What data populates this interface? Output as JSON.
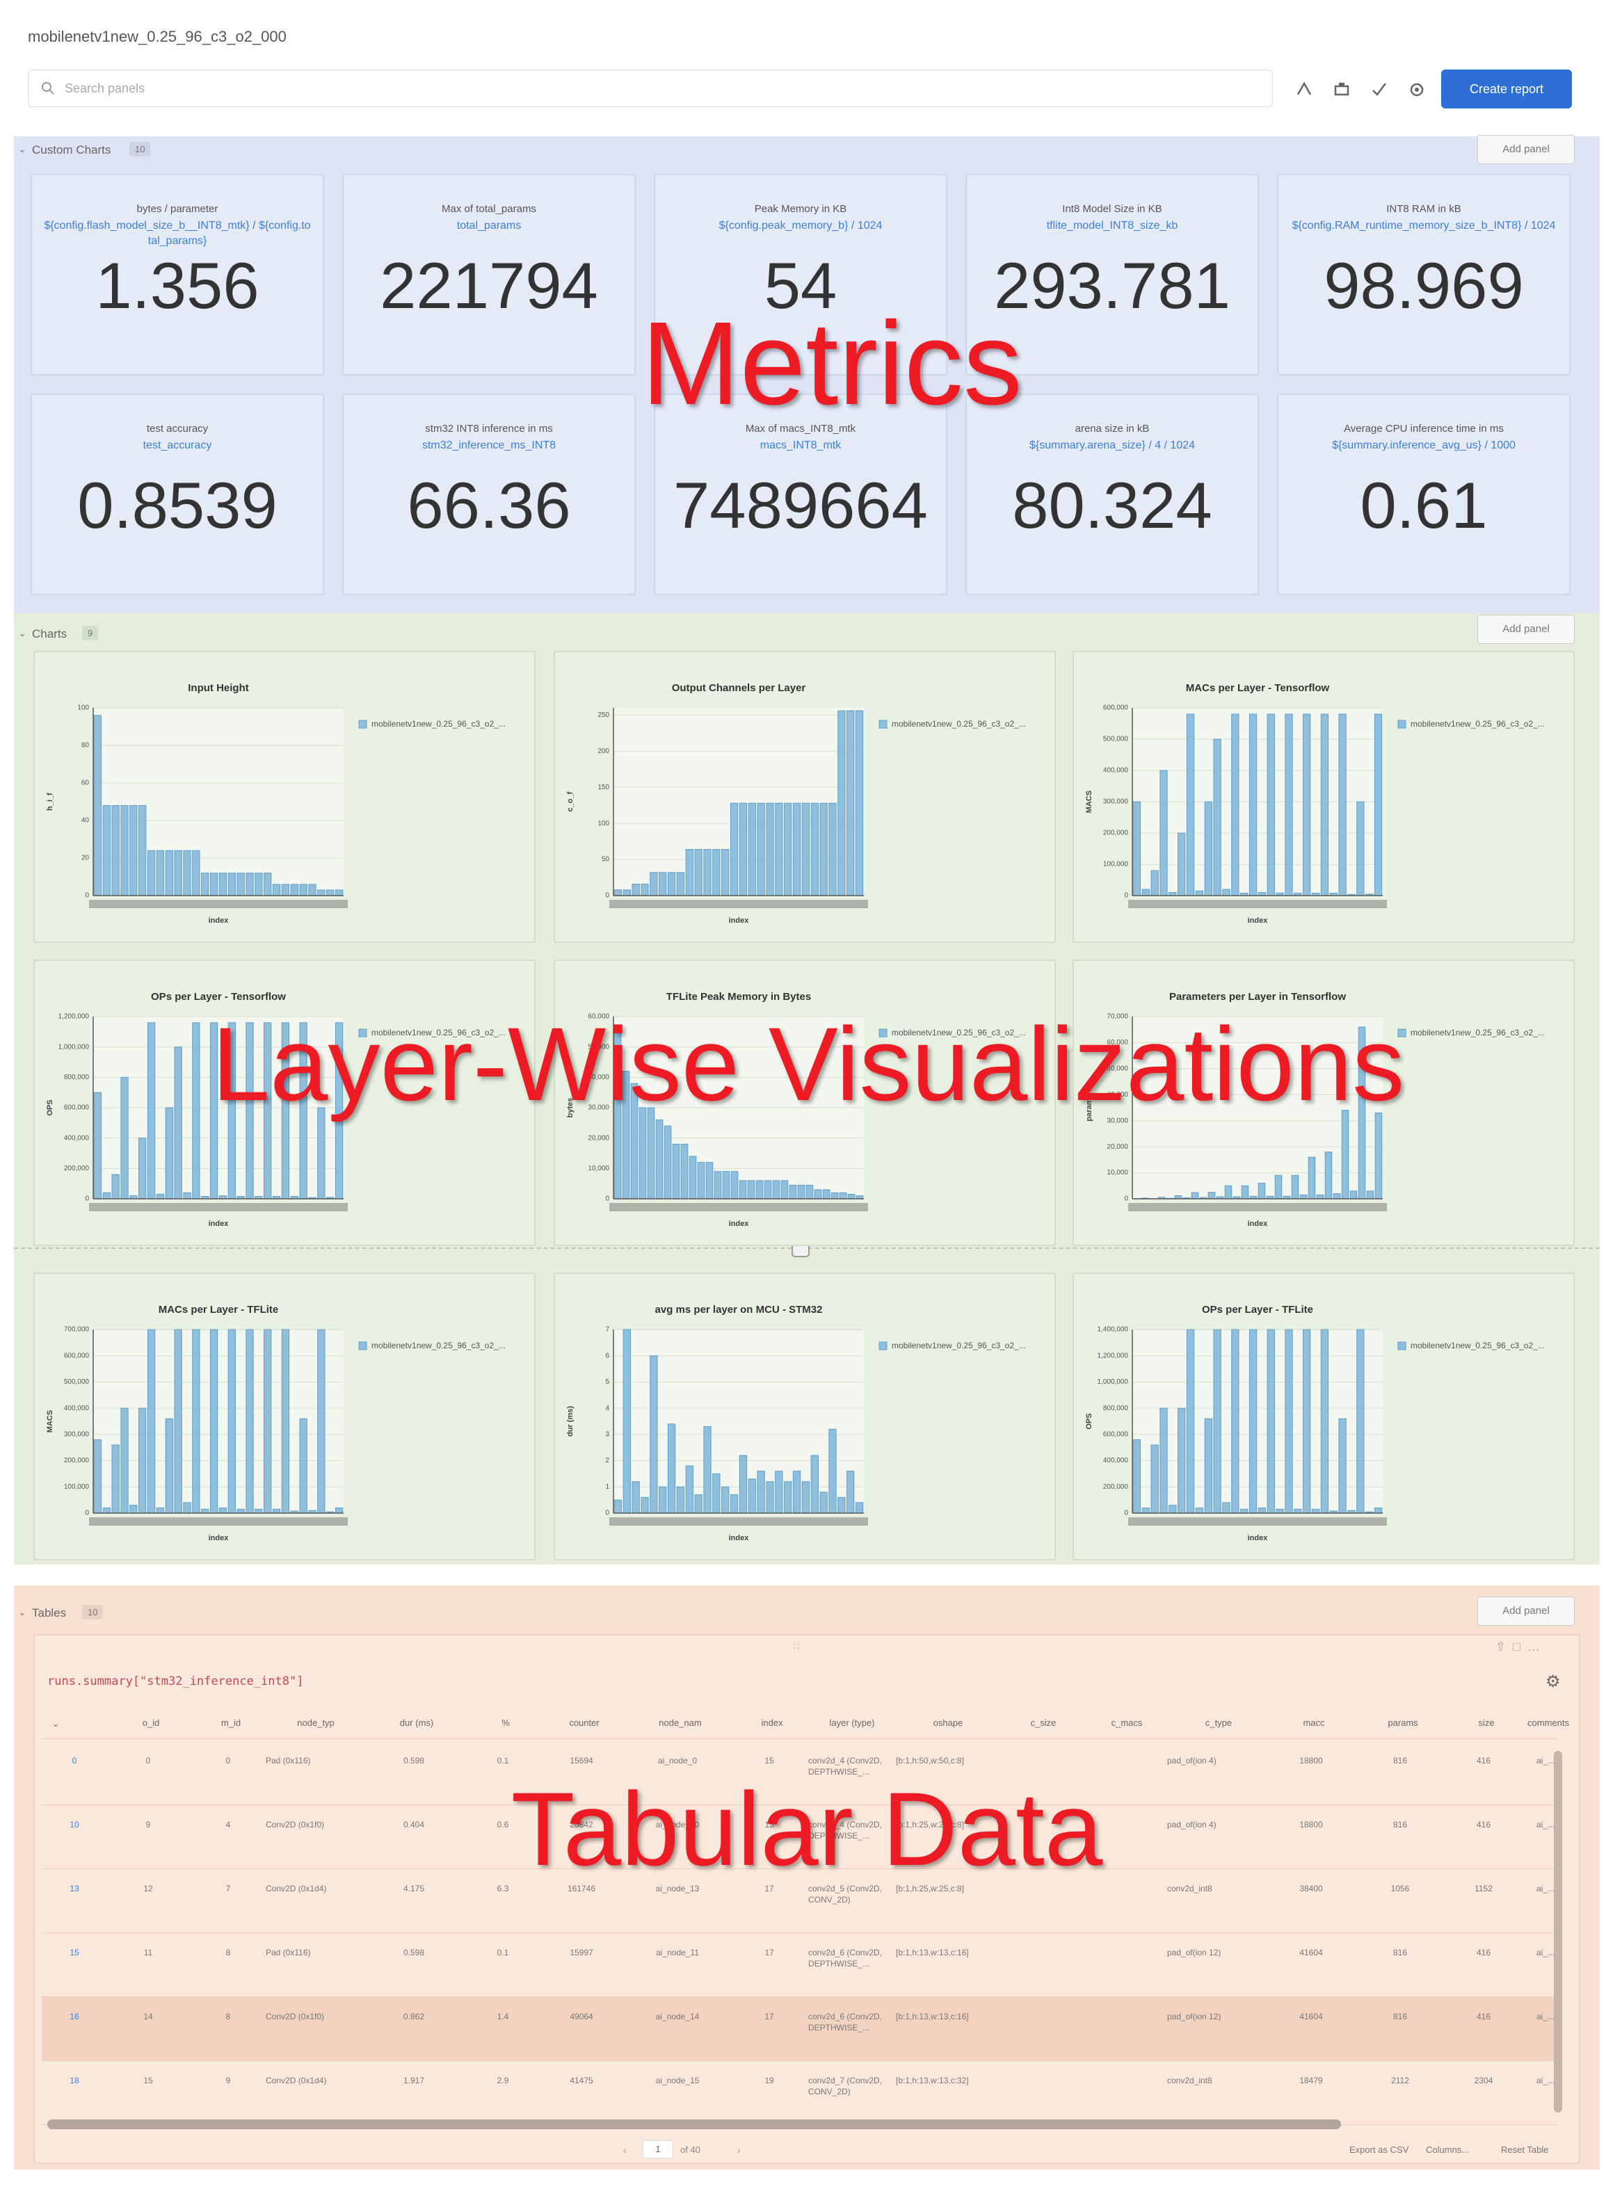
{
  "header": {
    "title": "mobilenetv1new_0.25_96_c3_o2_000",
    "search_placeholder": "Search panels",
    "create_report": "Create report"
  },
  "metrics_section": {
    "name": "Custom Charts",
    "count": 10,
    "add_panel": "Add panel",
    "cards": [
      {
        "title": "bytes / parameter",
        "expression": "${config.flash_model_size_b__INT8_mtk} / ${config.total_params}",
        "value": 1.356
      },
      {
        "title": "Max of total_params",
        "expression": "total_params",
        "value": 221794
      },
      {
        "title": "Peak Memory in KB",
        "expression": "${config.peak_memory_b} / 1024",
        "value": 54
      },
      {
        "title": "Int8 Model Size in KB",
        "expression": "tflite_model_INT8_size_kb",
        "value": 293.781
      },
      {
        "title": "INT8 RAM in kB",
        "expression": "${config.RAM_runtime_memory_size_b_INT8} / 1024",
        "value": 98.969
      },
      {
        "title": "test accuracy",
        "expression": "test_accuracy",
        "value": 0.8539
      },
      {
        "title": "stm32 INT8 inference in ms",
        "expression": "stm32_inference_ms_INT8",
        "value": 66.36
      },
      {
        "title": "Max of macs_INT8_mtk",
        "expression": "macs_INT8_mtk",
        "value": 7489664
      },
      {
        "title": "arena size in kB",
        "expression": "${summary.arena_size} / 4 / 1024",
        "value": 80.324
      },
      {
        "title": "Average CPU inference time in ms",
        "expression": "${summary.inference_avg_us} / 1000",
        "value": 0.61
      }
    ]
  },
  "charts_section": {
    "name": "Charts",
    "count": 9,
    "add_panel": "Add panel",
    "charts": [
      {
        "type": "bar",
        "title": "Input Height",
        "legend": "mobilenetv1new_0.25_96_c3_o2_...",
        "y_label": "h_i_f",
        "x_label": "index",
        "color": "#8fbfdc",
        "ylim": [
          0,
          100
        ],
        "yticks": [
          0,
          20,
          40,
          60,
          80,
          100
        ],
        "values": [
          96,
          48,
          48,
          48,
          48,
          48,
          24,
          24,
          24,
          24,
          24,
          24,
          12,
          12,
          12,
          12,
          12,
          12,
          12,
          12,
          6,
          6,
          6,
          6,
          6,
          3,
          3,
          3
        ]
      },
      {
        "type": "bar",
        "title": "Output Channels per Layer",
        "legend": "mobilenetv1new_0.25_96_c3_o2_...",
        "y_label": "c_o_f",
        "x_label": "index",
        "color": "#8fbfdc",
        "ylim": [
          0,
          260
        ],
        "yticks": [
          0,
          50,
          100,
          150,
          200,
          250
        ],
        "values": [
          8,
          8,
          16,
          16,
          32,
          32,
          32,
          32,
          64,
          64,
          64,
          64,
          64,
          128,
          128,
          128,
          128,
          128,
          128,
          128,
          128,
          128,
          128,
          128,
          128,
          256,
          256,
          256
        ]
      },
      {
        "type": "bar",
        "title": "MACs per Layer - Tensorflow",
        "legend": "mobilenetv1new_0.25_96_c3_o2_...",
        "y_label": "MACS",
        "x_label": "index",
        "color": "#8fbfdc",
        "ylim": [
          0,
          600000
        ],
        "yticks": [
          0,
          {
            "value": 100000,
            "label": "100,000"
          },
          {
            "value": 200000,
            "label": "200,000"
          },
          {
            "value": 300000,
            "label": "300,000"
          },
          {
            "value": 400000,
            "label": "400,000"
          },
          {
            "value": 500000,
            "label": "500,000"
          },
          {
            "value": 600000,
            "label": "600,000"
          }
        ],
        "values": [
          300000,
          20000,
          80000,
          400000,
          10000,
          200000,
          580000,
          15000,
          300000,
          500000,
          20000,
          580000,
          8000,
          580000,
          10000,
          580000,
          8000,
          580000,
          8000,
          580000,
          8000,
          580000,
          8000,
          580000,
          4000,
          300000,
          5000,
          580000
        ]
      },
      {
        "type": "bar",
        "title": "OPs per Layer - Tensorflow",
        "legend": "mobilenetv1new_0.25_96_c3_o2_...",
        "y_label": "OPS",
        "x_label": "index",
        "color": "#8fbfdc",
        "ylim": [
          0,
          1200000
        ],
        "yticks": [
          0,
          {
            "value": 200000,
            "label": "200,000"
          },
          {
            "value": 400000,
            "label": "400,000"
          },
          {
            "value": 600000,
            "label": "600,000"
          },
          {
            "value": 800000,
            "label": "800,000"
          },
          {
            "value": 1000000,
            "label": "1,000,000"
          },
          {
            "value": 1200000,
            "label": "1,200,000"
          }
        ],
        "values": [
          700000,
          40000,
          160000,
          800000,
          20000,
          400000,
          1160000,
          30000,
          600000,
          1000000,
          40000,
          1160000,
          16000,
          1160000,
          20000,
          1160000,
          16000,
          1160000,
          16000,
          1160000,
          16000,
          1160000,
          16000,
          1160000,
          8000,
          600000,
          10000,
          1160000
        ]
      },
      {
        "type": "bar",
        "title": "TFLite Peak Memory in Bytes",
        "legend": "mobilenetv1new_0.25_96_c3_o2_...",
        "y_label": "bytes",
        "x_label": "index",
        "color": "#8fbfdc",
        "ylim": [
          0,
          60000
        ],
        "yticks": [
          0,
          {
            "value": 10000,
            "label": "10,000"
          },
          {
            "value": 20000,
            "label": "20,000"
          },
          {
            "value": 30000,
            "label": "30,000"
          },
          {
            "value": 40000,
            "label": "40,000"
          },
          {
            "value": 50000,
            "label": "50,000"
          },
          {
            "value": 60000,
            "label": "60,000"
          }
        ],
        "values": [
          56000,
          42000,
          38000,
          30000,
          30000,
          26000,
          24000,
          18000,
          18000,
          14000,
          12000,
          12000,
          9000,
          9000,
          9000,
          6000,
          6000,
          6000,
          6000,
          6000,
          6000,
          4500,
          4500,
          4500,
          3000,
          3000,
          2000,
          2000,
          1500,
          1000
        ]
      },
      {
        "type": "bar",
        "title": "Parameters per Layer in Tensorflow",
        "legend": "mobilenetv1new_0.25_96_c3_o2_...",
        "y_label": "params",
        "x_label": "index",
        "color": "#8fbfdc",
        "ylim": [
          0,
          70000
        ],
        "yticks": [
          0,
          {
            "value": 10000,
            "label": "10,000"
          },
          {
            "value": 20000,
            "label": "20,000"
          },
          {
            "value": 30000,
            "label": "30,000"
          },
          {
            "value": 40000,
            "label": "40,000"
          },
          {
            "value": 50000,
            "label": "50,000"
          },
          {
            "value": 60000,
            "label": "60,000"
          },
          {
            "value": 70000,
            "label": "70,000"
          }
        ],
        "values": [
          100,
          300,
          100,
          600,
          200,
          1200,
          400,
          2400,
          500,
          2500,
          800,
          5000,
          800,
          5000,
          1000,
          6000,
          1000,
          9000,
          1000,
          9000,
          1500,
          16000,
          1500,
          18000,
          2000,
          34000,
          3000,
          66000,
          3000,
          33000
        ]
      },
      {
        "type": "bar",
        "title": "MACs per Layer - TFLite",
        "legend": "mobilenetv1new_0.25_96_c3_o2_...",
        "y_label": "MACS",
        "x_label": "index",
        "color": "#8fbfdc",
        "ylim": [
          0,
          700000
        ],
        "yticks": [
          0,
          {
            "value": 100000,
            "label": "100,000"
          },
          {
            "value": 200000,
            "label": "200,000"
          },
          {
            "value": 300000,
            "label": "300,000"
          },
          {
            "value": 400000,
            "label": "400,000"
          },
          {
            "value": 500000,
            "label": "500,000"
          },
          {
            "value": 600000,
            "label": "600,000"
          },
          {
            "value": 700000,
            "label": "700,000"
          }
        ],
        "values": [
          280000,
          20000,
          260000,
          400000,
          30000,
          400000,
          700000,
          20000,
          360000,
          700000,
          40000,
          700000,
          15000,
          700000,
          20000,
          700000,
          15000,
          700000,
          15000,
          700000,
          15000,
          700000,
          8000,
          360000,
          10000,
          700000,
          5000,
          20000
        ]
      },
      {
        "type": "bar",
        "title": "avg ms per layer on MCU - STM32",
        "legend": "mobilenetv1new_0.25_96_c3_o2_...",
        "y_label": "dur (ms)",
        "x_label": "index",
        "color": "#8fbfdc",
        "ylim": [
          0,
          7
        ],
        "yticks": [
          0,
          1,
          2,
          3,
          4,
          5,
          6,
          7
        ],
        "values": [
          0.5,
          7,
          1.2,
          0.6,
          6,
          1,
          3.4,
          1,
          1.8,
          0.7,
          3.3,
          1.5,
          1,
          0.7,
          2.2,
          1.3,
          1.6,
          1.2,
          1.6,
          1.2,
          1.6,
          1.2,
          2.2,
          0.8,
          3.2,
          0.6,
          1.6,
          0.4
        ]
      },
      {
        "type": "bar",
        "title": "OPs per Layer - TFLite",
        "legend": "mobilenetv1new_0.25_96_c3_o2_...",
        "y_label": "OPS",
        "x_label": "index",
        "color": "#8fbfdc",
        "ylim": [
          0,
          1400000
        ],
        "yticks": [
          0,
          {
            "value": 200000,
            "label": "200,000"
          },
          {
            "value": 400000,
            "label": "400,000"
          },
          {
            "value": 600000,
            "label": "600,000"
          },
          {
            "value": 800000,
            "label": "800,000"
          },
          {
            "value": 1000000,
            "label": "1,000,000"
          },
          {
            "value": 1200000,
            "label": "1,200,000"
          },
          {
            "value": 1400000,
            "label": "1,400,000"
          }
        ],
        "values": [
          560000,
          40000,
          520000,
          800000,
          60000,
          800000,
          1400000,
          40000,
          720000,
          1400000,
          80000,
          1400000,
          30000,
          1400000,
          40000,
          1400000,
          30000,
          1400000,
          30000,
          1400000,
          30000,
          1400000,
          16000,
          720000,
          20000,
          1400000,
          10000,
          40000
        ]
      }
    ]
  },
  "tables_section": {
    "name": "Tables",
    "count": 10,
    "add_panel": "Add panel",
    "query": "runs.summary[\"stm32_inference_int8\"]",
    "table": {
      "columns": [
        "o_id",
        "m_id",
        "node_typ",
        "dur (ms)",
        "%",
        "counter",
        "node_nam",
        "index",
        "layer (type)",
        "oshape",
        "c_size",
        "c_macs",
        "c_type",
        "macc",
        "params",
        "size",
        "comments"
      ],
      "rows": [
        [
          "0",
          "0",
          "0",
          "Pad (0x116)",
          "0.598",
          "0.1",
          "15694",
          "ai_node_0",
          "15",
          "conv2d_4 (Conv2D, DEPTHWISE_...",
          "[b:1,h:50,w:50,c:8]",
          null,
          null,
          "pad_of(ion 4)",
          "18800",
          "816",
          "416",
          "ai_..."
        ],
        [
          "10",
          "9",
          "4",
          "Conv2D (0x1f0)",
          "0.404",
          "0.6",
          "20842",
          "ai_node_10",
          "15",
          "conv2d_4 (Conv2D, DEPTHWISE_...",
          "[b:1,h:25,w:25,c:8]",
          null,
          null,
          "pad_of(ion 4)",
          "18800",
          "816",
          "416",
          "ai_..."
        ],
        [
          "13",
          "12",
          "7",
          "Conv2D (0x1d4)",
          "4.175",
          "6.3",
          "161746",
          "ai_node_13",
          "17",
          "conv2d_5 (Conv2D, CONV_2D)",
          "[b:1,h:25,w:25,c:8]",
          null,
          null,
          "conv2d_int8",
          "38400",
          "1056",
          "1152",
          "ai_..."
        ],
        [
          "15",
          "11",
          "8",
          "Pad (0x116)",
          "0.598",
          "0.1",
          "15997",
          "ai_node_11",
          "17",
          "conv2d_6 (Conv2D, DEPTHWISE_...",
          "[b:1,h:13,w:13,c:16]",
          null,
          null,
          "pad_of(ion 12)",
          "41604",
          "816",
          "416",
          "ai_..."
        ],
        [
          "16",
          "14",
          "8",
          "Conv2D (0x1f0)",
          "0.862",
          "1.4",
          "49064",
          "ai_node_14",
          "17",
          "conv2d_6 (Conv2D, DEPTHWISE_...",
          "[b:1,h:13,w:13,c:16]",
          null,
          null,
          "pad_of(ion 12)",
          "41604",
          "816",
          "416",
          "ai_..."
        ],
        [
          "18",
          "15",
          "9",
          "Conv2D (0x1d4)",
          "1.917",
          "2.9",
          "41475",
          "ai_node_15",
          "19",
          "conv2d_7 (Conv2D, CONV_2D)",
          "[b:1,h:13,w:13,c:32]",
          null,
          null,
          "conv2d_int8",
          "18479",
          "2112",
          "2304",
          "ai_..."
        ]
      ]
    },
    "pagination": {
      "page": "1",
      "range": "of 40"
    },
    "footer": [
      "Export as CSV",
      "Columns...",
      "Reset Table"
    ]
  },
  "overlays": [
    "Metrics",
    "Layer-Wise Visualizations",
    "Tabular Data"
  ]
}
